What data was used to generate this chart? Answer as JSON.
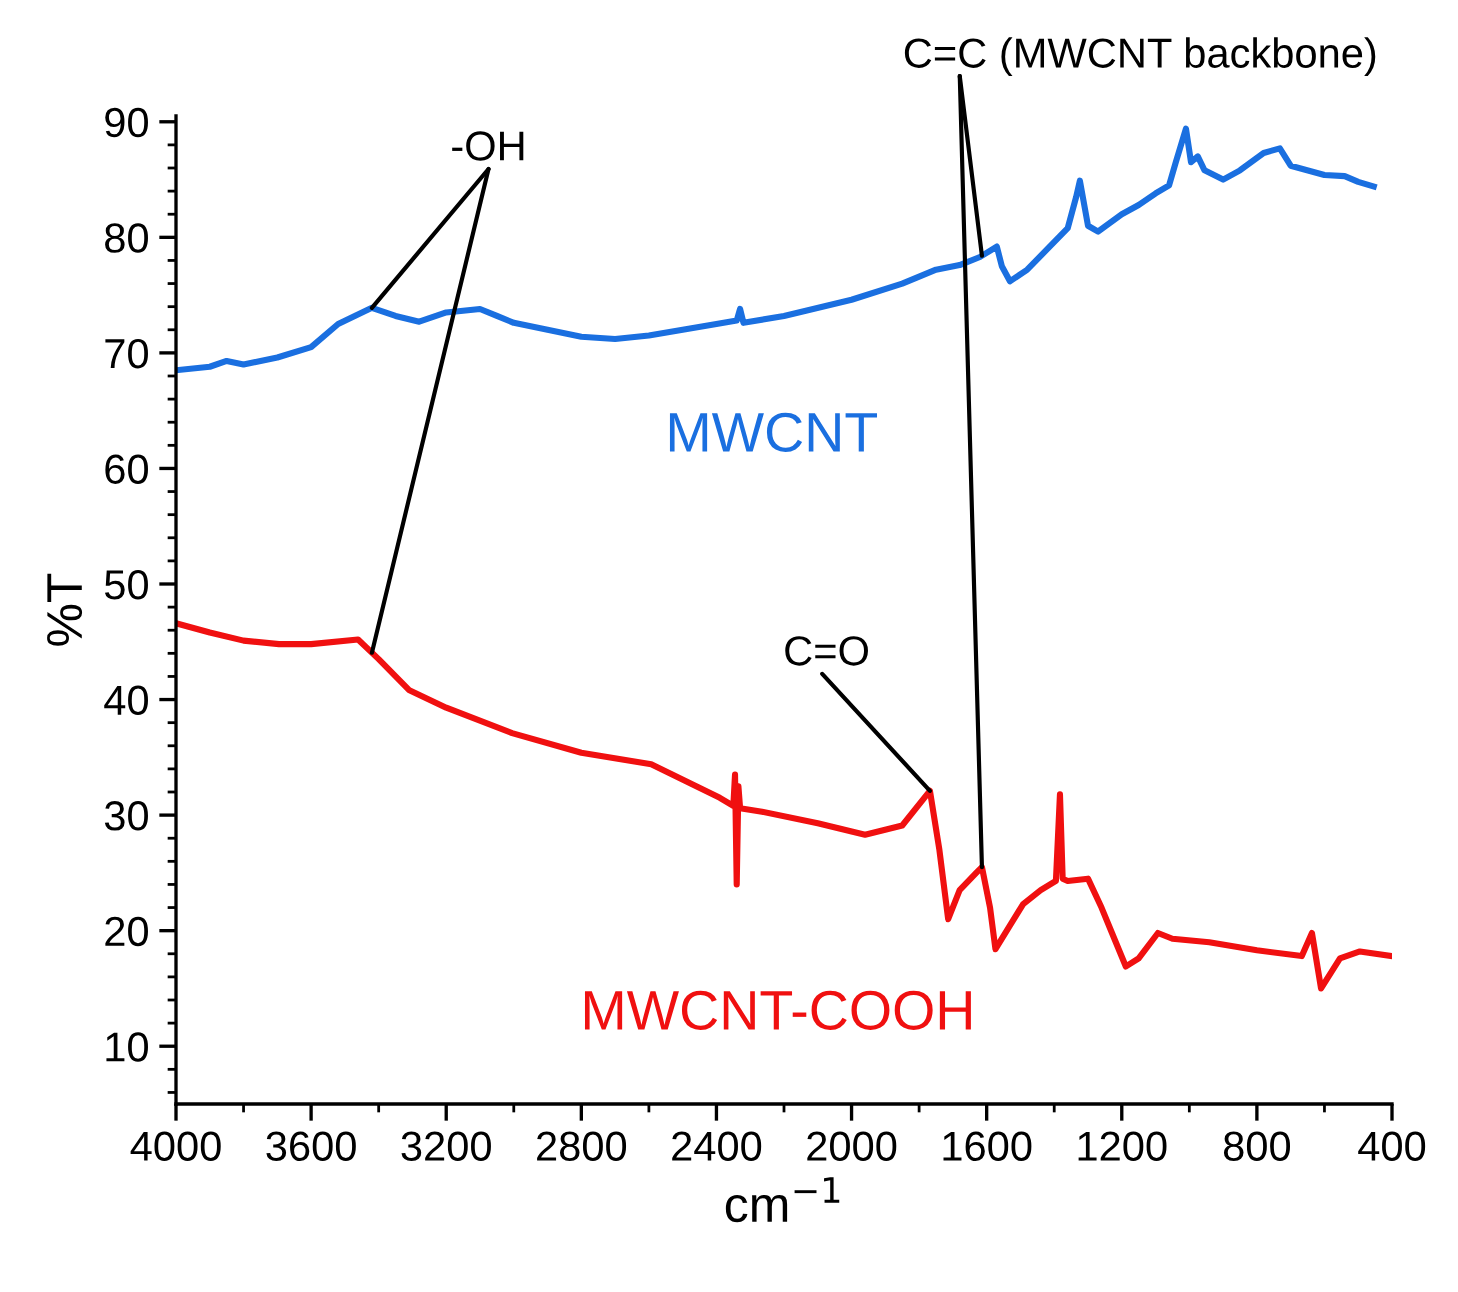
{
  "chart_data": {
    "type": "line",
    "xlabel": "cm$^{−1}$",
    "ylabel": "%T",
    "xlim": [
      4000,
      400
    ],
    "xticks": [
      4000,
      3600,
      3200,
      2800,
      2400,
      2000,
      1600,
      1200,
      800,
      400
    ],
    "ylim": [
      5,
      90.5
    ],
    "yticks": [
      10,
      20,
      30,
      40,
      50,
      60,
      70,
      80,
      90
    ],
    "grid": false,
    "legend": false,
    "marker": "none",
    "line_style": "solid",
    "series": [
      {
        "name": "MWCNT",
        "color": "#1a6fe0",
        "x": [
          4000,
          3900,
          3850,
          3800,
          3700,
          3600,
          3520,
          3420,
          3350,
          3280,
          3200,
          3100,
          3050,
          3000,
          2900,
          2800,
          2700,
          2600,
          2500,
          2400,
          2340,
          2330,
          2320,
          2200,
          2000,
          1850,
          1750,
          1680,
          1620,
          1570,
          1555,
          1531,
          1480,
          1420,
          1360,
          1335,
          1324,
          1300,
          1270,
          1200,
          1150,
          1100,
          1060,
          1040,
          1010,
          995,
          975,
          955,
          900,
          850,
          780,
          732,
          700,
          600,
          540,
          500,
          454
        ],
        "values": [
          68.5,
          68.8,
          69.3,
          69.0,
          69.6,
          70.5,
          72.5,
          73.9,
          73.2,
          72.7,
          73.5,
          73.8,
          73.2,
          72.6,
          72.0,
          71.4,
          71.2,
          71.5,
          72.0,
          72.5,
          72.8,
          73.8,
          72.6,
          73.2,
          74.6,
          76.0,
          77.2,
          77.6,
          78.3,
          79.2,
          77.5,
          76.2,
          77.2,
          79.0,
          80.8,
          83.5,
          84.9,
          81.0,
          80.5,
          82.0,
          82.8,
          83.8,
          84.5,
          86.5,
          89.4,
          86.5,
          87.0,
          85.8,
          85.0,
          85.8,
          87.3,
          87.7,
          86.2,
          85.4,
          85.3,
          84.8,
          84.4
        ]
      },
      {
        "name": "MWCNT-COOH",
        "color": "#f01010",
        "x": [
          4000,
          3900,
          3800,
          3695,
          3600,
          3461,
          3400,
          3309,
          3200,
          3005,
          2800,
          2593,
          2390,
          2350,
          2345,
          2340,
          2335,
          2330,
          2265,
          2100,
          1960,
          1850,
          1768,
          1740,
          1714,
          1680,
          1631,
          1614,
          1590,
          1574,
          1530,
          1492,
          1440,
          1395,
          1383,
          1375,
          1360,
          1300,
          1260,
          1229,
          1188,
          1150,
          1093,
          1050,
          941,
          800,
          667,
          637,
          610,
          554,
          495,
          400
        ],
        "values": [
          46.6,
          45.8,
          45.1,
          44.8,
          44.8,
          45.2,
          43.5,
          40.8,
          39.3,
          37.1,
          35.4,
          34.4,
          31.5,
          30.8,
          33.5,
          24.0,
          32.5,
          30.6,
          30.3,
          29.3,
          28.3,
          29.1,
          32.1,
          27.0,
          21.0,
          23.5,
          25.0,
          25.5,
          22.0,
          18.4,
          20.5,
          22.3,
          23.5,
          24.3,
          31.8,
          24.5,
          24.3,
          24.5,
          22.0,
          19.8,
          16.9,
          17.6,
          19.8,
          19.3,
          19.0,
          18.3,
          17.8,
          19.8,
          15.0,
          17.6,
          18.2,
          17.8
        ]
      }
    ],
    "annotations": [
      {
        "text": "-OH",
        "x": 3420,
        "y": 73.9
      },
      {
        "text": "C=C (MWCNT backbone)",
        "x": 1614,
        "y": 25.5
      },
      {
        "text": "C=O",
        "x": 1768,
        "y": 32.1
      }
    ]
  }
}
